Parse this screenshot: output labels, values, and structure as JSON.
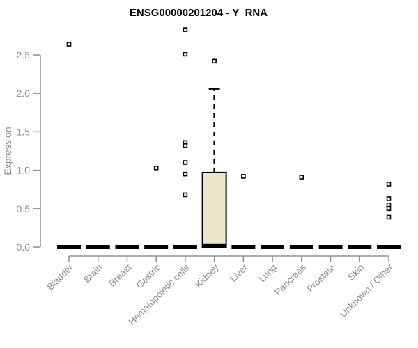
{
  "chart_data": {
    "type": "boxplot",
    "title": "ENSG00000201204 - Y_RNA",
    "ylabel": "Expression",
    "xlabel": "",
    "ylim": [
      0,
      2.5
    ],
    "yticks": [
      0.0,
      0.5,
      1.0,
      1.5,
      2.0,
      2.5
    ],
    "ytick_labels": [
      "0.0",
      "0.5",
      "1.0",
      "1.5",
      "2.0",
      "2.5"
    ],
    "grid": false,
    "legend": "none",
    "categories": [
      "Bladder",
      "Brain",
      "Breast",
      "Gastric",
      "Hematopoietic cells",
      "Kidney",
      "Liver",
      "Lung",
      "Pancreas",
      "Prostate",
      "Skin",
      "Unknown / Other"
    ],
    "boxes": [
      {
        "category": "Bladder",
        "q1": 0,
        "median": 0,
        "q3": 0,
        "whisker_low": 0,
        "whisker_high": 0,
        "outliers": [
          2.64
        ]
      },
      {
        "category": "Brain",
        "q1": 0,
        "median": 0,
        "q3": 0,
        "whisker_low": 0,
        "whisker_high": 0,
        "outliers": []
      },
      {
        "category": "Breast",
        "q1": 0,
        "median": 0,
        "q3": 0,
        "whisker_low": 0,
        "whisker_high": 0,
        "outliers": []
      },
      {
        "category": "Gastric",
        "q1": 0,
        "median": 0,
        "q3": 0,
        "whisker_low": 0,
        "whisker_high": 0,
        "outliers": [
          1.03
        ]
      },
      {
        "category": "Hematopoietic cells",
        "q1": 0,
        "median": 0,
        "q3": 0,
        "whisker_low": 0,
        "whisker_high": 0,
        "outliers": [
          2.83,
          2.51,
          1.36,
          1.32,
          1.1,
          0.95,
          0.68
        ]
      },
      {
        "category": "Kidney",
        "q1": 0,
        "median": 0.02,
        "q3": 0.97,
        "whisker_low": 0,
        "whisker_high": 2.06,
        "outliers": [
          2.42
        ]
      },
      {
        "category": "Liver",
        "q1": 0,
        "median": 0,
        "q3": 0,
        "whisker_low": 0,
        "whisker_high": 0,
        "outliers": [
          0.92
        ]
      },
      {
        "category": "Lung",
        "q1": 0,
        "median": 0,
        "q3": 0,
        "whisker_low": 0,
        "whisker_high": 0,
        "outliers": []
      },
      {
        "category": "Pancreas",
        "q1": 0,
        "median": 0,
        "q3": 0,
        "whisker_low": 0,
        "whisker_high": 0,
        "outliers": [
          0.91
        ]
      },
      {
        "category": "Prostate",
        "q1": 0,
        "median": 0,
        "q3": 0,
        "whisker_low": 0,
        "whisker_high": 0,
        "outliers": []
      },
      {
        "category": "Skin",
        "q1": 0,
        "median": 0,
        "q3": 0,
        "whisker_low": 0,
        "whisker_high": 0,
        "outliers": []
      },
      {
        "category": "Unknown / Other",
        "q1": 0,
        "median": 0,
        "q3": 0,
        "whisker_low": 0,
        "whisker_high": 0,
        "outliers": [
          0.82,
          0.63,
          0.55,
          0.5,
          0.39
        ]
      }
    ],
    "colors": {
      "box_fill": "#EBE6CA",
      "box_stroke": "#000000",
      "median": "#000000",
      "outlier_fill": "#ffffff",
      "outlier_stroke": "#000000",
      "axis": "#909090",
      "text": "#8e8e8e",
      "title": "#000000",
      "background": "#ffffff"
    }
  }
}
